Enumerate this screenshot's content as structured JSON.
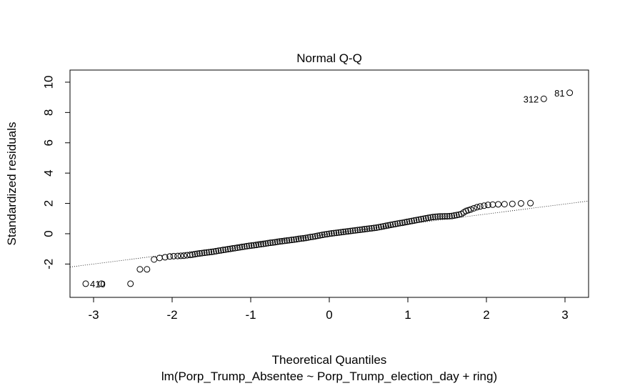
{
  "chart_data": {
    "type": "scatter",
    "title": "Normal Q-Q",
    "xlabel": "Theoretical Quantiles",
    "subtitle": "lm(Porp_Trump_Absentee ~ Porp_Trump_election_day + ring)",
    "ylabel": "Standardized residuals",
    "xlim": [
      -3.3,
      3.3
    ],
    "ylim": [
      -4.2,
      10.8
    ],
    "x_ticks": [
      -3,
      -2,
      -1,
      0,
      1,
      2,
      3
    ],
    "y_ticks": [
      -2,
      0,
      2,
      4,
      6,
      8,
      10
    ],
    "grid": false,
    "reference_line": {
      "slope": 0.66,
      "intercept": -0.02,
      "style": "dotted"
    },
    "annotations": [
      {
        "text": "410",
        "x": -3.1,
        "y": -3.3,
        "side": "right"
      },
      {
        "text": "312",
        "x": 2.73,
        "y": 8.9,
        "side": "left"
      },
      {
        "text": "81",
        "x": 3.06,
        "y": 9.3,
        "side": "left"
      }
    ],
    "points": [
      [
        -3.1,
        -3.3
      ],
      [
        -2.9,
        -3.3
      ],
      [
        -2.53,
        -3.3
      ],
      [
        -2.41,
        -2.35
      ],
      [
        -2.32,
        -2.35
      ],
      [
        -2.23,
        -1.7
      ],
      [
        -2.16,
        -1.6
      ],
      [
        -2.09,
        -1.55
      ],
      [
        -2.03,
        -1.5
      ],
      [
        -1.98,
        -1.48
      ],
      [
        -1.93,
        -1.47
      ],
      [
        -1.89,
        -1.46
      ],
      [
        -1.85,
        -1.45
      ],
      [
        -1.81,
        -1.42
      ],
      [
        -1.77,
        -1.4
      ],
      [
        -1.74,
        -1.38
      ],
      [
        -1.71,
        -1.35
      ],
      [
        -1.68,
        -1.32
      ],
      [
        -1.65,
        -1.3
      ],
      [
        -1.62,
        -1.28
      ],
      [
        -1.59,
        -1.26
      ],
      [
        -1.56,
        -1.24
      ],
      [
        -1.53,
        -1.22
      ],
      [
        -1.5,
        -1.2
      ],
      [
        -1.47,
        -1.18
      ],
      [
        -1.44,
        -1.15
      ],
      [
        -1.41,
        -1.12
      ],
      [
        -1.38,
        -1.1
      ],
      [
        -1.35,
        -1.07
      ],
      [
        -1.32,
        -1.05
      ],
      [
        -1.29,
        -1.02
      ],
      [
        -1.26,
        -1.0
      ],
      [
        -1.23,
        -0.97
      ],
      [
        -1.2,
        -0.95
      ],
      [
        -1.17,
        -0.92
      ],
      [
        -1.14,
        -0.9
      ],
      [
        -1.11,
        -0.87
      ],
      [
        -1.08,
        -0.85
      ],
      [
        -1.05,
        -0.82
      ],
      [
        -1.02,
        -0.8
      ],
      [
        -0.99,
        -0.78
      ],
      [
        -0.96,
        -0.76
      ],
      [
        -0.93,
        -0.74
      ],
      [
        -0.9,
        -0.71
      ],
      [
        -0.87,
        -0.69
      ],
      [
        -0.84,
        -0.67
      ],
      [
        -0.81,
        -0.65
      ],
      [
        -0.78,
        -0.62
      ],
      [
        -0.75,
        -0.6
      ],
      [
        -0.72,
        -0.58
      ],
      [
        -0.69,
        -0.56
      ],
      [
        -0.66,
        -0.53
      ],
      [
        -0.63,
        -0.51
      ],
      [
        -0.6,
        -0.49
      ],
      [
        -0.57,
        -0.47
      ],
      [
        -0.54,
        -0.45
      ],
      [
        -0.51,
        -0.43
      ],
      [
        -0.48,
        -0.41
      ],
      [
        -0.45,
        -0.39
      ],
      [
        -0.42,
        -0.37
      ],
      [
        -0.39,
        -0.34
      ],
      [
        -0.36,
        -0.32
      ],
      [
        -0.33,
        -0.3
      ],
      [
        -0.3,
        -0.28
      ],
      [
        -0.27,
        -0.25
      ],
      [
        -0.24,
        -0.22
      ],
      [
        -0.21,
        -0.2
      ],
      [
        -0.18,
        -0.17
      ],
      [
        -0.15,
        -0.14
      ],
      [
        -0.12,
        -0.11
      ],
      [
        -0.09,
        -0.08
      ],
      [
        -0.06,
        -0.05
      ],
      [
        -0.03,
        -0.03
      ],
      [
        0.0,
        0.0
      ],
      [
        0.03,
        0.02
      ],
      [
        0.06,
        0.04
      ],
      [
        0.09,
        0.06
      ],
      [
        0.12,
        0.08
      ],
      [
        0.15,
        0.1
      ],
      [
        0.18,
        0.12
      ],
      [
        0.21,
        0.14
      ],
      [
        0.24,
        0.16
      ],
      [
        0.27,
        0.18
      ],
      [
        0.3,
        0.2
      ],
      [
        0.33,
        0.22
      ],
      [
        0.36,
        0.24
      ],
      [
        0.39,
        0.26
      ],
      [
        0.42,
        0.28
      ],
      [
        0.45,
        0.3
      ],
      [
        0.48,
        0.32
      ],
      [
        0.51,
        0.34
      ],
      [
        0.54,
        0.36
      ],
      [
        0.57,
        0.38
      ],
      [
        0.6,
        0.4
      ],
      [
        0.63,
        0.43
      ],
      [
        0.66,
        0.46
      ],
      [
        0.69,
        0.49
      ],
      [
        0.72,
        0.52
      ],
      [
        0.75,
        0.55
      ],
      [
        0.78,
        0.58
      ],
      [
        0.81,
        0.61
      ],
      [
        0.84,
        0.64
      ],
      [
        0.87,
        0.67
      ],
      [
        0.9,
        0.7
      ],
      [
        0.93,
        0.72
      ],
      [
        0.96,
        0.75
      ],
      [
        0.99,
        0.78
      ],
      [
        1.02,
        0.81
      ],
      [
        1.05,
        0.84
      ],
      [
        1.08,
        0.87
      ],
      [
        1.11,
        0.9
      ],
      [
        1.14,
        0.93
      ],
      [
        1.17,
        0.96
      ],
      [
        1.2,
        0.99
      ],
      [
        1.23,
        1.02
      ],
      [
        1.26,
        1.05
      ],
      [
        1.29,
        1.08
      ],
      [
        1.32,
        1.1
      ],
      [
        1.35,
        1.12
      ],
      [
        1.38,
        1.13
      ],
      [
        1.41,
        1.14
      ],
      [
        1.44,
        1.14
      ],
      [
        1.47,
        1.15
      ],
      [
        1.5,
        1.15
      ],
      [
        1.53,
        1.16
      ],
      [
        1.56,
        1.17
      ],
      [
        1.59,
        1.2
      ],
      [
        1.62,
        1.23
      ],
      [
        1.65,
        1.26
      ],
      [
        1.68,
        1.3
      ],
      [
        1.71,
        1.4
      ],
      [
        1.74,
        1.5
      ],
      [
        1.77,
        1.55
      ],
      [
        1.8,
        1.6
      ],
      [
        1.84,
        1.68
      ],
      [
        1.88,
        1.75
      ],
      [
        1.92,
        1.8
      ],
      [
        1.97,
        1.85
      ],
      [
        2.02,
        1.9
      ],
      [
        2.08,
        1.92
      ],
      [
        2.15,
        1.94
      ],
      [
        2.23,
        1.95
      ],
      [
        2.33,
        1.97
      ],
      [
        2.44,
        2.0
      ],
      [
        2.56,
        2.02
      ],
      [
        2.73,
        8.9
      ],
      [
        3.06,
        9.3
      ]
    ]
  }
}
